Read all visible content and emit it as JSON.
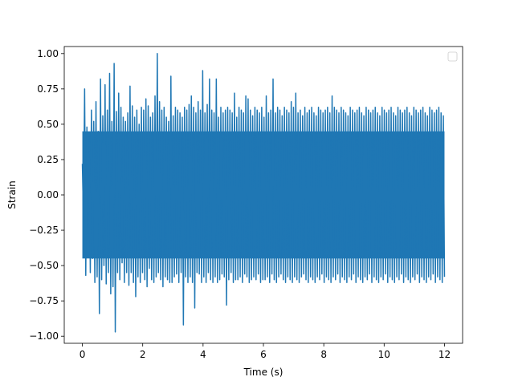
{
  "chart_data": {
    "type": "line",
    "title": "",
    "xlabel": "Time (s)",
    "ylabel": "Strain",
    "xlim": [
      -0.6,
      12.6
    ],
    "ylim": [
      -1.05,
      1.05
    ],
    "x_ticks": [
      "0",
      "2",
      "4",
      "6",
      "8",
      "10",
      "12"
    ],
    "x_tick_values": [
      0,
      2,
      4,
      6,
      8,
      10,
      12
    ],
    "y_ticks": [
      "−1.00",
      "−0.75",
      "−0.50",
      "−0.25",
      "0.00",
      "0.25",
      "0.50",
      "0.75",
      "1.00"
    ],
    "y_tick_values": [
      -1.0,
      -0.75,
      -0.5,
      -0.25,
      0.0,
      0.25,
      0.5,
      0.75,
      1.0
    ],
    "grid": false,
    "legend": {
      "placement": "upper right",
      "entries": []
    },
    "series": [
      {
        "color": "#1f77b4",
        "x_start": 0.0,
        "x_end": 12.0,
        "values": [
          0.22,
          -0.18,
          0.75,
          -0.57,
          0.48,
          -0.31,
          0.41,
          -0.55,
          0.6,
          -0.45,
          0.52,
          -0.62,
          0.66,
          -0.58,
          0.45,
          -0.84,
          0.82,
          -0.6,
          0.56,
          -0.5,
          0.78,
          -0.63,
          0.6,
          -0.55,
          0.86,
          -0.7,
          0.52,
          -0.65,
          0.93,
          -0.97,
          0.59,
          -0.55,
          0.72,
          -0.6,
          0.62,
          -0.48,
          0.55,
          -0.62,
          0.52,
          -0.55,
          0.58,
          -0.64,
          0.77,
          -0.55,
          0.63,
          -0.62,
          0.55,
          -0.72,
          0.6,
          -0.58,
          0.5,
          -0.62,
          0.62,
          -0.55,
          0.6,
          -0.6,
          0.68,
          -0.65,
          0.63,
          -0.52,
          0.55,
          -0.6,
          0.58,
          -0.62,
          0.7,
          -0.58,
          1.0,
          -0.55,
          0.66,
          -0.6,
          0.6,
          -0.65,
          0.62,
          -0.58,
          0.55,
          -0.6,
          0.52,
          -0.62,
          0.84,
          -0.62,
          0.56,
          -0.58,
          0.62,
          -0.56,
          0.6,
          -0.62,
          0.58,
          -0.55,
          0.55,
          -0.92,
          0.62,
          -0.58,
          0.6,
          -0.62,
          0.64,
          -0.58,
          0.7,
          -0.62,
          0.62,
          -0.8,
          0.58,
          -0.55,
          0.66,
          -0.56,
          0.6,
          -0.62,
          0.88,
          -0.58,
          0.58,
          -0.62,
          0.64,
          -0.55,
          0.82,
          -0.6,
          0.6,
          -0.62,
          0.58,
          -0.58,
          0.82,
          -0.62,
          0.55,
          -0.6,
          0.62,
          -0.56,
          0.58,
          -0.58,
          0.6,
          -0.78,
          0.62,
          -0.6,
          0.6,
          -0.55,
          0.58,
          -0.62,
          0.72,
          -0.6,
          0.55,
          -0.6,
          0.62,
          -0.58,
          0.6,
          -0.62,
          0.58,
          -0.56,
          0.7,
          -0.58,
          0.68,
          -0.62,
          0.6,
          -0.6,
          0.56,
          -0.58,
          0.62,
          -0.6,
          0.6,
          -0.56,
          0.58,
          -0.62,
          0.62,
          -0.6,
          0.55,
          -0.6,
          0.7,
          -0.58,
          0.58,
          -0.62,
          0.6,
          -0.56,
          0.82,
          -0.6,
          0.58,
          -0.62,
          0.62,
          -0.58,
          0.6,
          -0.56,
          0.56,
          -0.6,
          0.62,
          -0.62,
          0.6,
          -0.58,
          0.58,
          -0.6,
          0.66,
          -0.62,
          0.62,
          -0.58,
          0.72,
          -0.6,
          0.58,
          -0.62,
          0.6,
          -0.58,
          0.56,
          -0.56,
          0.62,
          -0.6,
          0.58,
          -0.62,
          0.6,
          -0.58,
          0.62,
          -0.6,
          0.58,
          -0.62,
          0.56,
          -0.58,
          0.62,
          -0.6,
          0.6,
          -0.56,
          0.58,
          -0.62,
          0.6,
          -0.58,
          0.62,
          -0.6,
          0.58,
          -0.62,
          0.7,
          -0.58,
          0.62,
          -0.6,
          0.6,
          -0.56,
          0.58,
          -0.62,
          0.62,
          -0.58,
          0.6,
          -0.6,
          0.58,
          -0.62,
          0.56,
          -0.58,
          0.62,
          -0.6,
          0.6,
          -0.56,
          0.58,
          -0.62,
          0.6,
          -0.58,
          0.62,
          -0.6,
          0.58,
          -0.62,
          0.56,
          -0.58,
          0.62,
          -0.6,
          0.6,
          -0.56,
          0.58,
          -0.62,
          0.6,
          -0.58,
          0.62,
          -0.6,
          0.58,
          -0.62,
          0.56,
          -0.58,
          0.62,
          -0.6,
          0.6,
          -0.56,
          0.58,
          -0.62,
          0.6,
          -0.58,
          0.62,
          -0.6,
          0.58,
          -0.62,
          0.56,
          -0.58,
          0.62,
          -0.6,
          0.6,
          -0.56,
          0.58,
          -0.62,
          0.6,
          -0.58,
          0.62,
          -0.6,
          0.58,
          -0.62,
          0.56,
          -0.58,
          0.62,
          -0.6,
          0.6,
          -0.56,
          0.58,
          -0.62,
          0.6,
          -0.58,
          0.62,
          -0.6,
          0.58,
          -0.62,
          0.56,
          -0.58,
          0.62,
          -0.6,
          0.6,
          -0.56,
          0.58,
          -0.62,
          0.6,
          -0.58,
          0.62,
          -0.6,
          0.58,
          -0.62,
          0.56,
          -0.58
        ]
      }
    ]
  }
}
